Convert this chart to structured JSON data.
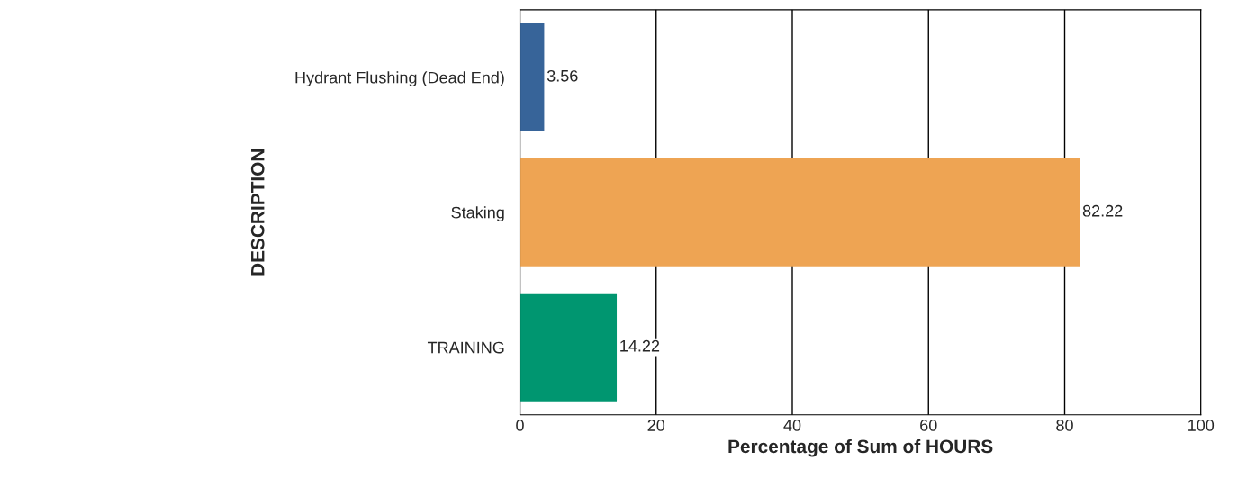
{
  "chart_data": {
    "type": "bar",
    "orientation": "horizontal",
    "xlabel": "Percentage of Sum of HOURS",
    "ylabel": "DESCRIPTION",
    "categories": [
      "Hydrant Flushing (Dead End)",
      "Staking",
      "TRAINING"
    ],
    "values": [
      3.56,
      82.22,
      14.22
    ],
    "colors": [
      "#376499",
      "#eea453",
      "#009670"
    ],
    "xlim": [
      0,
      100
    ],
    "xticks": [
      0,
      20,
      40,
      60,
      80,
      100
    ],
    "grid": "x",
    "legend": false,
    "data_labels": true
  }
}
